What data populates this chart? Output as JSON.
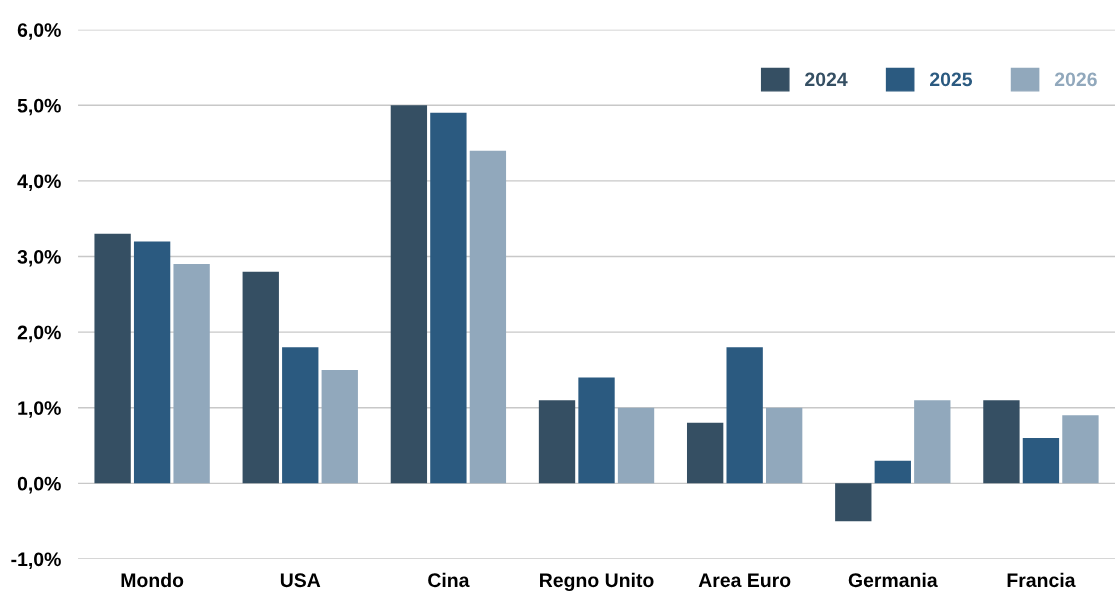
{
  "chart_data": {
    "type": "bar",
    "categories": [
      "Mondo",
      "USA",
      "Cina",
      "Regno Unito",
      "Area Euro",
      "Germania",
      "Francia"
    ],
    "series": [
      {
        "name": "2024",
        "color": "#354f63",
        "values": [
          3.3,
          2.8,
          5.0,
          1.1,
          0.8,
          -0.5,
          1.1
        ]
      },
      {
        "name": "2025",
        "color": "#2b5a80",
        "values": [
          3.2,
          1.8,
          4.9,
          1.4,
          1.8,
          0.3,
          0.6
        ]
      },
      {
        "name": "2026",
        "color": "#91a8bc",
        "values": [
          2.9,
          1.5,
          4.4,
          1.0,
          1.0,
          1.1,
          0.9
        ]
      }
    ],
    "ylim": [
      -1.0,
      6.0
    ],
    "yticks": [
      {
        "value": -1.0,
        "label": "-1,0%"
      },
      {
        "value": 0.0,
        "label": "0,0%"
      },
      {
        "value": 1.0,
        "label": "1,0%"
      },
      {
        "value": 2.0,
        "label": "2,0%"
      },
      {
        "value": 3.0,
        "label": "3,0%"
      },
      {
        "value": 4.0,
        "label": "4,0%"
      },
      {
        "value": 5.0,
        "label": "5,0%"
      },
      {
        "value": 6.0,
        "label": "6,0%"
      }
    ],
    "grid": "y",
    "legend": "top right"
  }
}
